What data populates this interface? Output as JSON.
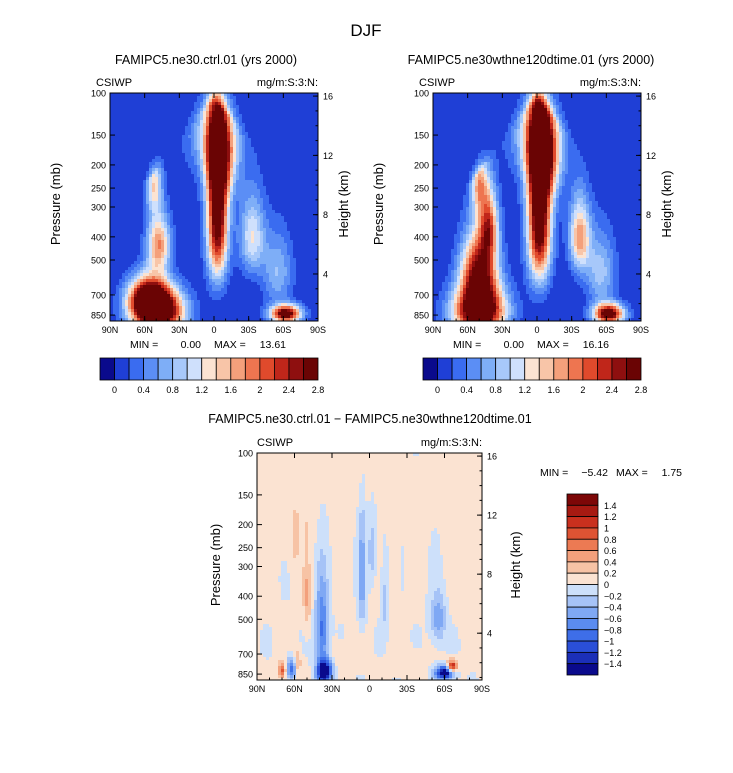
{
  "page_title": "DJF",
  "chart_data": [
    {
      "type": "heatmap",
      "title": "FAMIPC5.ne30.ctrl.01 (yrs 2000)",
      "field_label": "CSIWP",
      "units_label": "mg/m:S:3:N:",
      "xlabel": "",
      "ylabel": "Pressure (mb)",
      "y2label": "Height (km)",
      "x_ticks": [
        "90N",
        "60N",
        "30N",
        "0",
        "30S",
        "60S",
        "90S"
      ],
      "x_range": [
        90,
        -90
      ],
      "y_ticks": [
        "100",
        "150",
        "200",
        "250",
        "300",
        "400",
        "500",
        "700",
        "850"
      ],
      "y_tick_values": [
        100,
        150,
        200,
        250,
        300,
        400,
        500,
        700,
        850
      ],
      "y2_ticks": [
        "4",
        "8",
        "12",
        "16"
      ],
      "y2_tick_values": [
        4,
        8,
        12,
        16
      ],
      "min_label": "MIN =",
      "min_value": "0.00",
      "max_label": "MAX =",
      "max_value": "13.61",
      "colorbar_labels": [
        "0",
        "0.4",
        "0.8",
        "1.2",
        "1.6",
        "2",
        "2.4",
        "2.8"
      ],
      "features": [
        {
          "lat": 48,
          "p": 830,
          "value": 3.2,
          "slat": 22,
          "sp": 170
        },
        {
          "lat": 56,
          "p": 720,
          "value": 2.8,
          "slat": 17,
          "sp": 140
        },
        {
          "lat": 48,
          "p": 430,
          "value": 1.8,
          "slat": 10,
          "sp": 120
        },
        {
          "lat": 52,
          "p": 240,
          "value": 1.3,
          "slat": 7,
          "sp": 70
        },
        {
          "lat": -3,
          "p": 320,
          "value": 3.0,
          "slat": 9,
          "sp": 250
        },
        {
          "lat": -6,
          "p": 190,
          "value": 1.6,
          "slat": 13,
          "sp": 80
        },
        {
          "lat": 0,
          "p": 150,
          "value": 0.9,
          "slat": 22,
          "sp": 60
        },
        {
          "lat": -33,
          "p": 400,
          "value": 1.2,
          "slat": 11,
          "sp": 150
        },
        {
          "lat": -62,
          "p": 840,
          "value": 3.0,
          "slat": 13,
          "sp": 70
        },
        {
          "lat": -55,
          "p": 560,
          "value": 0.8,
          "slat": 13,
          "sp": 200
        }
      ]
    },
    {
      "type": "heatmap",
      "title": "FAMIPC5.ne30wthne120dtime.01 (yrs 2000)",
      "field_label": "CSIWP",
      "units_label": "mg/m:S:3:N:",
      "xlabel": "",
      "ylabel": "Pressure (mb)",
      "y2label": "Height (km)",
      "x_ticks": [
        "90N",
        "60N",
        "30N",
        "0",
        "30S",
        "60S",
        "90S"
      ],
      "x_range": [
        90,
        -90
      ],
      "y_ticks": [
        "100",
        "150",
        "200",
        "250",
        "300",
        "400",
        "500",
        "700",
        "850"
      ],
      "y_tick_values": [
        100,
        150,
        200,
        250,
        300,
        400,
        500,
        700,
        850
      ],
      "y2_ticks": [
        "4",
        "8",
        "12",
        "16"
      ],
      "y2_tick_values": [
        4,
        8,
        12,
        16
      ],
      "min_label": "MIN =",
      "min_value": "0.00",
      "max_label": "MAX =",
      "max_value": "16.16",
      "colorbar_labels": [
        "0",
        "0.4",
        "0.8",
        "1.2",
        "1.6",
        "2",
        "2.4",
        "2.8"
      ],
      "features": [
        {
          "lat": 50,
          "p": 820,
          "value": 3.4,
          "slat": 22,
          "sp": 190
        },
        {
          "lat": 50,
          "p": 560,
          "value": 2.6,
          "slat": 15,
          "sp": 200
        },
        {
          "lat": 42,
          "p": 360,
          "value": 1.8,
          "slat": 8,
          "sp": 120
        },
        {
          "lat": 50,
          "p": 240,
          "value": 1.4,
          "slat": 7,
          "sp": 70
        },
        {
          "lat": -2,
          "p": 320,
          "value": 3.2,
          "slat": 10,
          "sp": 260
        },
        {
          "lat": -6,
          "p": 190,
          "value": 1.8,
          "slat": 14,
          "sp": 80
        },
        {
          "lat": 0,
          "p": 150,
          "value": 1.0,
          "slat": 22,
          "sp": 60
        },
        {
          "lat": -37,
          "p": 400,
          "value": 1.7,
          "slat": 9,
          "sp": 140
        },
        {
          "lat": -62,
          "p": 840,
          "value": 3.0,
          "slat": 13,
          "sp": 80
        },
        {
          "lat": -55,
          "p": 560,
          "value": 0.9,
          "slat": 13,
          "sp": 200
        }
      ]
    },
    {
      "type": "heatmap",
      "title": "FAMIPC5.ne30.ctrl.01 − FAMIPC5.ne30wthne120dtime.01",
      "field_label": "CSIWP",
      "units_label": "mg/m:S:3:N:",
      "xlabel": "",
      "ylabel": "Pressure (mb)",
      "y2label": "Height (km)",
      "x_ticks": [
        "90N",
        "60N",
        "30N",
        "0",
        "30S",
        "60S",
        "90S"
      ],
      "x_range": [
        90,
        -90
      ],
      "y_ticks": [
        "100",
        "150",
        "200",
        "250",
        "300",
        "400",
        "500",
        "700",
        "850"
      ],
      "y_tick_values": [
        100,
        150,
        200,
        250,
        300,
        400,
        500,
        700,
        850
      ],
      "y2_ticks": [
        "4",
        "8",
        "12",
        "16"
      ],
      "y2_tick_values": [
        4,
        8,
        12,
        16
      ],
      "min_label": "MIN =",
      "min_value": "−5.42",
      "max_label": "MAX =",
      "max_value": "1.75",
      "colorbar_labels": [
        "1.4",
        "1.2",
        "1",
        "0.8",
        "0.6",
        "0.4",
        "0.2",
        "0",
        "−0.2",
        "−0.4",
        "−0.6",
        "−0.8",
        "−1",
        "−1.2",
        "−1.4"
      ],
      "features": [
        {
          "lat": 36,
          "p": 830,
          "value": -1.8,
          "slat": 6,
          "sp": 90
        },
        {
          "lat": 38,
          "p": 560,
          "value": -0.9,
          "slat": 5,
          "sp": 250
        },
        {
          "lat": 62,
          "p": 800,
          "value": -1.0,
          "slat": 4,
          "sp": 80
        },
        {
          "lat": 70,
          "p": 820,
          "value": 0.9,
          "slat": 3,
          "sp": 60
        },
        {
          "lat": 58,
          "p": 760,
          "value": 0.6,
          "slat": 3,
          "sp": 80
        },
        {
          "lat": 50,
          "p": 400,
          "value": 0.4,
          "slat": 3,
          "sp": 130
        },
        {
          "lat": 6,
          "p": 330,
          "value": -0.6,
          "slat": 3,
          "sp": 180
        },
        {
          "lat": -2,
          "p": 260,
          "value": -0.4,
          "slat": 3,
          "sp": 80
        },
        {
          "lat": -12,
          "p": 420,
          "value": -0.3,
          "slat": 3,
          "sp": 150
        },
        {
          "lat": -20,
          "p": 300,
          "value": 0.2,
          "slat": 3,
          "sp": 100
        },
        {
          "lat": -55,
          "p": 500,
          "value": -0.6,
          "slat": 6,
          "sp": 120
        },
        {
          "lat": -60,
          "p": 840,
          "value": -1.8,
          "slat": 7,
          "sp": 55
        },
        {
          "lat": -66,
          "p": 790,
          "value": 1.4,
          "slat": 4,
          "sp": 45
        },
        {
          "lat": 60,
          "p": 180,
          "value": 0.15,
          "slat": 20,
          "sp": 80
        },
        {
          "lat": 60,
          "p": 260,
          "value": 0.15,
          "slat": 4,
          "sp": 60
        },
        {
          "lat": 10,
          "p": 130,
          "value": 0.12,
          "slat": 10,
          "sp": 40
        },
        {
          "lat": -75,
          "p": 300,
          "value": 0.12,
          "slat": 10,
          "sp": 150
        },
        {
          "lat": 20,
          "p": 720,
          "value": 0.15,
          "slat": 14,
          "sp": 90
        },
        {
          "lat": -30,
          "p": 760,
          "value": 0.12,
          "slat": 12,
          "sp": 90
        }
      ]
    }
  ]
}
